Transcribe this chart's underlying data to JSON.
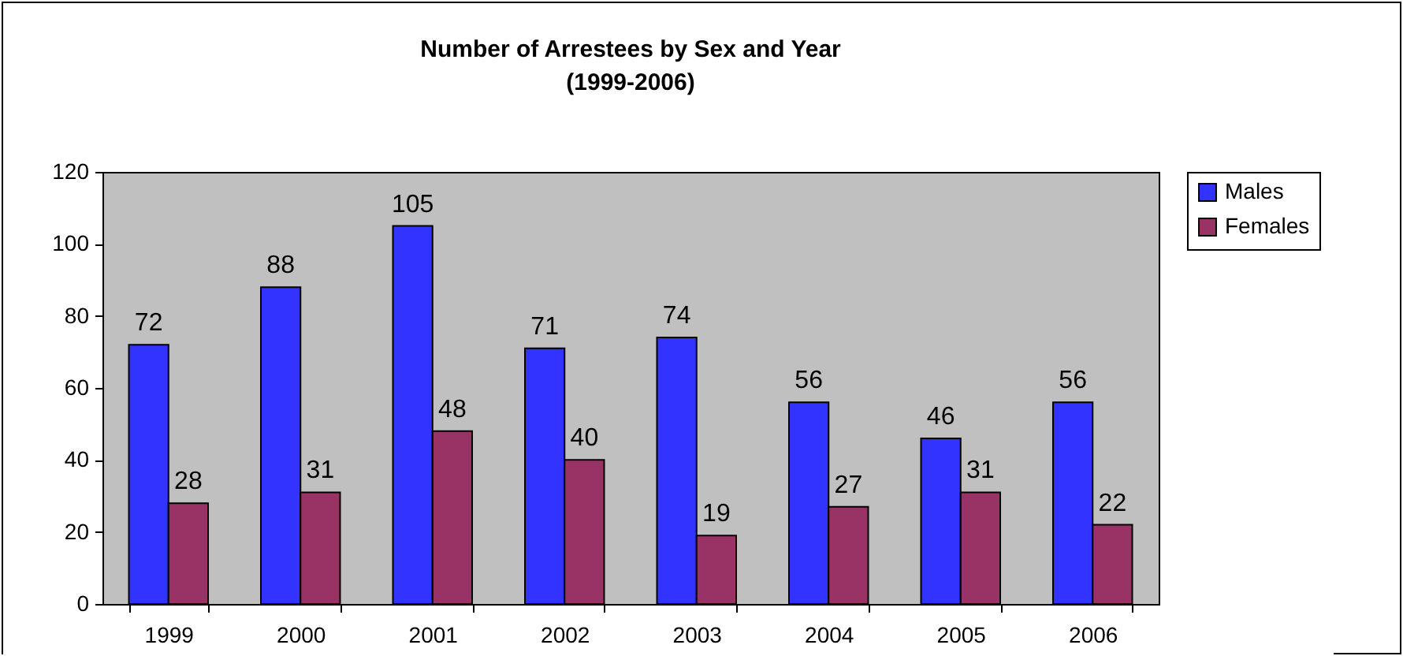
{
  "chart_data": {
    "type": "bar",
    "title": "Number of Arrestees by Sex and Year",
    "subtitle": "(1999-2006)",
    "categories": [
      "1999",
      "2000",
      "2001",
      "2002",
      "2003",
      "2004",
      "2005",
      "2006"
    ],
    "series": [
      {
        "name": "Males",
        "color": "#3333ff",
        "values": [
          72,
          88,
          105,
          71,
          74,
          56,
          46,
          56
        ]
      },
      {
        "name": "Females",
        "color": "#993366",
        "values": [
          28,
          31,
          48,
          40,
          19,
          27,
          31,
          22
        ]
      }
    ],
    "ylim": [
      0,
      120
    ],
    "yticks": [
      0,
      20,
      40,
      60,
      80,
      100,
      120
    ],
    "grid": false,
    "legend": "right",
    "data_labels": true
  }
}
